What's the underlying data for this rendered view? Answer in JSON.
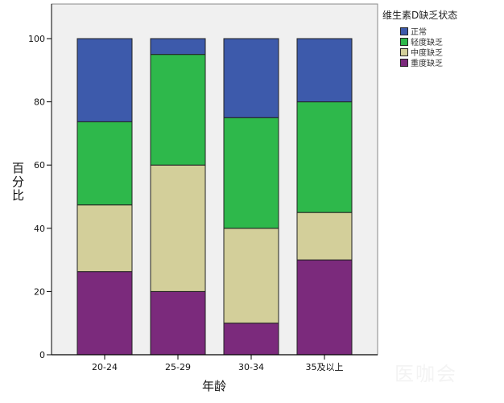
{
  "chart_data": {
    "type": "bar",
    "stacked": true,
    "title": "",
    "xlabel": "年龄",
    "ylabel": "百分比",
    "ylim": [
      0,
      100
    ],
    "yticks": [
      0,
      20,
      40,
      60,
      80,
      100
    ],
    "categories": [
      "20-24",
      "25-29",
      "30-34",
      "35及以上"
    ],
    "legend_title": "维生素D缺乏状态",
    "legend_position": "right",
    "series": [
      {
        "name": "重度缺乏",
        "color": "#7b2a7c",
        "values": [
          26.3,
          20,
          10,
          30
        ]
      },
      {
        "name": "中度缺乏",
        "color": "#d3cf9a",
        "values": [
          21.1,
          40,
          30,
          15
        ]
      },
      {
        "name": "轻度缺乏",
        "color": "#2eb84b",
        "values": [
          26.3,
          35,
          35,
          35
        ]
      },
      {
        "name": "正常",
        "color": "#3d5aab",
        "values": [
          26.3,
          5,
          25,
          20
        ]
      }
    ],
    "legend_order": [
      "正常",
      "轻度缺乏",
      "中度缺乏",
      "重度缺乏"
    ],
    "grid": false,
    "plot_background": "#f0f0f0"
  },
  "legend": {
    "title": "维生素D缺乏状态",
    "items": [
      {
        "label": "正常",
        "color": "#3d5aab"
      },
      {
        "label": "轻度缺乏",
        "color": "#2eb84b"
      },
      {
        "label": "中度缺乏",
        "color": "#d3cf9a"
      },
      {
        "label": "重度缺乏",
        "color": "#7b2a7c"
      }
    ]
  },
  "watermark": "医咖会"
}
